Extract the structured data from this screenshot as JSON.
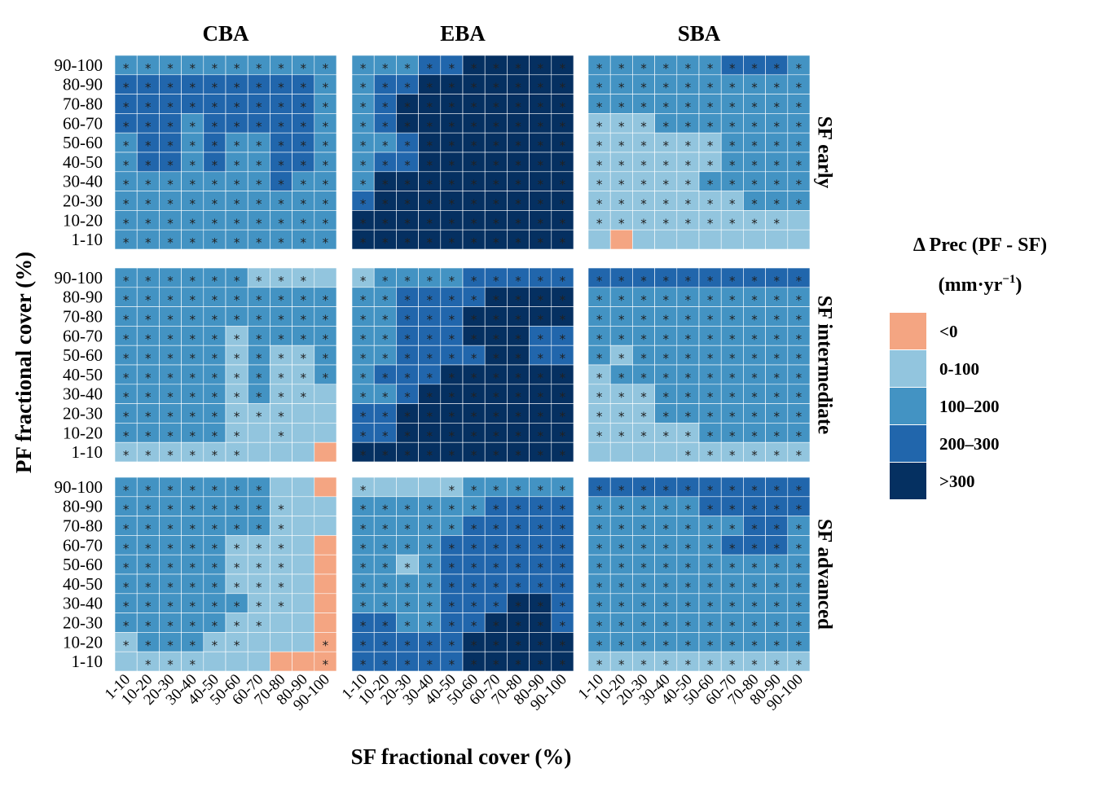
{
  "chart_data": {
    "type": "heatmap",
    "title": "",
    "xlabel": "SF fractional cover (%)",
    "ylabel": "PF fractional cover (%)",
    "x_categories": [
      "1-10",
      "10-20",
      "20-30",
      "30-40",
      "40-50",
      "50-60",
      "60-70",
      "70-80",
      "80-90",
      "90-100"
    ],
    "y_categories": [
      "90-100",
      "80-90",
      "70-80",
      "60-70",
      "50-60",
      "40-50",
      "30-40",
      "20-30",
      "10-20",
      "1-10"
    ],
    "columns": [
      "CBA",
      "EBA",
      "SBA"
    ],
    "rows": [
      "SF early",
      "SF intermediate",
      "SF advanced"
    ],
    "legend": {
      "title": "Δ Prec (PF - SF)",
      "unit_base": "(mm·yr",
      "unit_sup": "−1",
      "unit_close": ")",
      "classes": [
        {
          "label": "<0",
          "color": "#F4A582"
        },
        {
          "label": "0-100",
          "color": "#92C5DE"
        },
        {
          "label": "100–200",
          "color": "#4393C3"
        },
        {
          "label": "200–300",
          "color": "#2166AC"
        },
        {
          "label": ">300",
          "color": "#053061"
        }
      ]
    },
    "significance_marker": "*",
    "value_encoding": "0:<0, 1:0-100, 2:100-200, 3:200-300, 4:>300; rows ordered 90-100 down to 1-10, columns 1-10 to 90-100",
    "panels": [
      {
        "row": "SF early",
        "col": "CBA",
        "classes": [
          "2222222222",
          "3333333332",
          "3333333332",
          "3332333332",
          "2332322332",
          "2332322332",
          "2222222322",
          "2222222222",
          "2222222222",
          "2222222222"
        ],
        "sig": [
          "1111111111",
          "1111111111",
          "1111111111",
          "1111111111",
          "1111111111",
          "1111111111",
          "1111111111",
          "1111111111",
          "1111111111",
          "1111111111"
        ]
      },
      {
        "row": "SF early",
        "col": "EBA",
        "classes": [
          "2223344444",
          "2334444444",
          "2344444444",
          "2344444444",
          "2234444444",
          "2334444444",
          "2444444444",
          "3444444444",
          "4444444444",
          "4444444444"
        ],
        "sig": [
          "1111111111",
          "1111111111",
          "1111111111",
          "1111111111",
          "1111111111",
          "1111111111",
          "1111111111",
          "1111111111",
          "1111111111",
          "1111111111"
        ]
      },
      {
        "row": "SF early",
        "col": "SBA",
        "classes": [
          "2222223332",
          "2222222222",
          "2222222222",
          "1112222222",
          "1111112222",
          "1111112222",
          "1111122222",
          "1111111222",
          "1111111111",
          "1011111111"
        ],
        "sig": [
          "1111111111",
          "1111111111",
          "1111111111",
          "1111111111",
          "1111111111",
          "1111111111",
          "1111111111",
          "1111111111",
          "1111111110",
          "0000000000"
        ]
      },
      {
        "row": "SF intermediate",
        "col": "CBA",
        "classes": [
          "2222221111",
          "2222222222",
          "2222222222",
          "2222212222",
          "2222212112",
          "2222212112",
          "2222212111",
          "2222211111",
          "2222211111",
          "1111111110"
        ],
        "sig": [
          "1111111110",
          "1111111111",
          "1111111111",
          "1111111111",
          "1111111111",
          "1111111111",
          "1111111110",
          "1111111100",
          "1111110100",
          "1111110000"
        ]
      },
      {
        "row": "SF intermediate",
        "col": "EBA",
        "classes": [
          "1222233333",
          "2233334444",
          "2233344444",
          "2233344433",
          "2233334433",
          "2333444444",
          "2234444444",
          "3344444444",
          "3344444444",
          "4444444444"
        ],
        "sig": [
          "1111111111",
          "1111111111",
          "1111111111",
          "1111111111",
          "1111111111",
          "1111111111",
          "1111111111",
          "1111111111",
          "1111111111",
          "1111111111"
        ]
      },
      {
        "row": "SF intermediate",
        "col": "SBA",
        "classes": [
          "3333333333",
          "2222222222",
          "2222222222",
          "2222222222",
          "2122222222",
          "1222222222",
          "1112222222",
          "1112222222",
          "1111122222",
          "1111111111"
        ],
        "sig": [
          "1111111111",
          "1111111111",
          "1111111111",
          "1111111111",
          "1111111111",
          "1111111111",
          "1111111111",
          "1111111111",
          "1111111111",
          "0000111111"
        ]
      },
      {
        "row": "SF advanced",
        "col": "CBA",
        "classes": [
          "2222222110",
          "2222222111",
          "2222222111",
          "2222211110",
          "2222211110",
          "2222211110",
          "2222221110",
          "2222211110",
          "1222111110",
          "1111111000"
        ],
        "sig": [
          "1111111000",
          "1111111100",
          "1111111100",
          "1111111100",
          "1111111100",
          "1111111100",
          "1111111100",
          "1111111000",
          "1111110001",
          "0111000001"
        ]
      },
      {
        "row": "SF advanced",
        "col": "EBA",
        "classes": [
          "1111122222",
          "2222223333",
          "2222233333",
          "2222333333",
          "2212333333",
          "2222333333",
          "2222333443",
          "3322334443",
          "3333344444",
          "3333344444"
        ],
        "sig": [
          "1000111111",
          "1111111111",
          "1111111111",
          "1111111111",
          "1111111111",
          "1111111111",
          "1111111111",
          "1111111111",
          "1111111111",
          "1111111111"
        ]
      },
      {
        "row": "SF advanced",
        "col": "SBA",
        "classes": [
          "3333333333",
          "2222233333",
          "2222222332",
          "2222223332",
          "2222222222",
          "2222222222",
          "2222222222",
          "2222222222",
          "2222222222",
          "1111111111"
        ],
        "sig": [
          "1111111111",
          "1111111111",
          "1111111111",
          "1111111111",
          "1111111111",
          "1111111111",
          "1111111111",
          "1111111111",
          "1111111111",
          "1111111111"
        ]
      }
    ]
  }
}
